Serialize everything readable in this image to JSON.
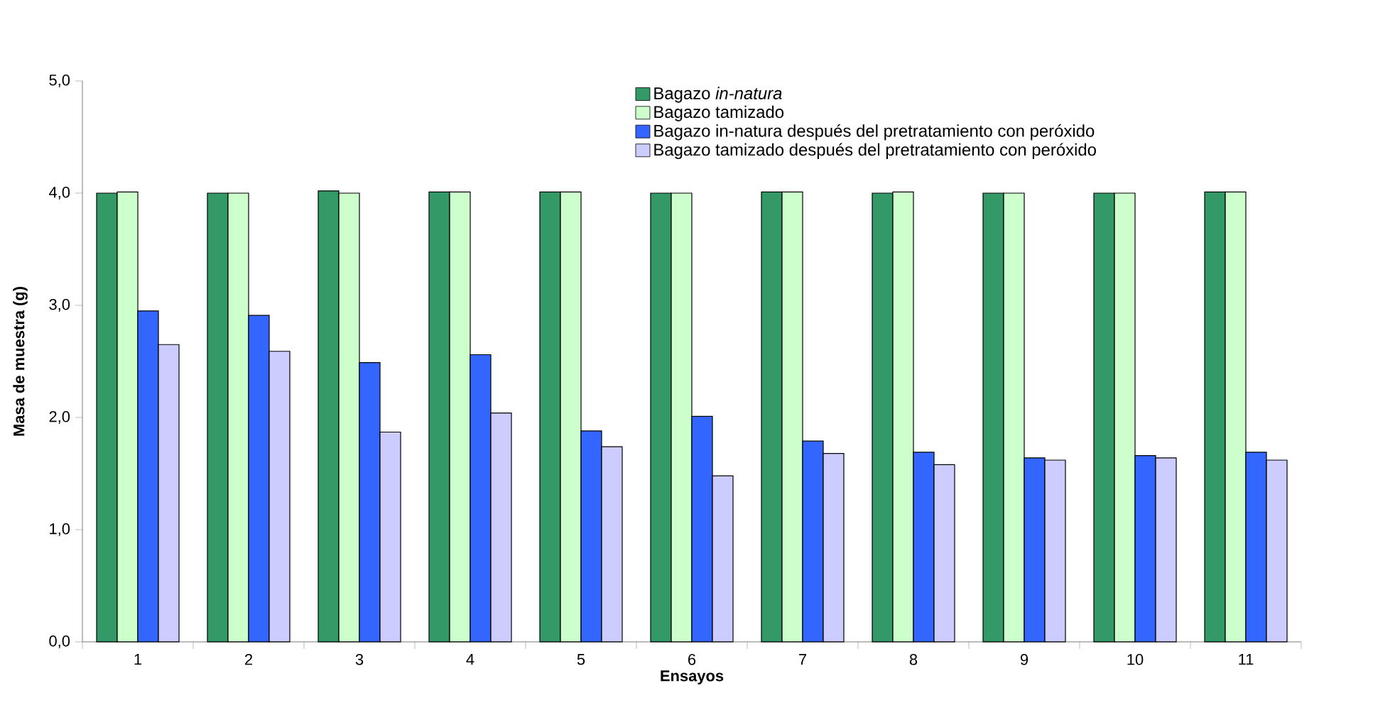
{
  "chart_data": {
    "type": "bar",
    "xlabel": "Ensayos",
    "ylabel": "Masa de muestra (g)",
    "categories": [
      "1",
      "2",
      "3",
      "4",
      "5",
      "6",
      "7",
      "8",
      "9",
      "10",
      "11"
    ],
    "series": [
      {
        "name": "Bagazo *in-natura*",
        "color": "#339966",
        "values": [
          4.0,
          4.0,
          4.02,
          4.01,
          4.01,
          4.0,
          4.01,
          4.0,
          4.0,
          4.0,
          4.01
        ]
      },
      {
        "name": "Bagazo tamizado",
        "color": "#ccffcc",
        "values": [
          4.01,
          4.0,
          4.0,
          4.01,
          4.01,
          4.0,
          4.01,
          4.01,
          4.0,
          4.0,
          4.01
        ]
      },
      {
        "name": "Bagazo in-natura después del  pretratamiento con peróxido",
        "color": "#3366ff",
        "values": [
          2.95,
          2.91,
          2.49,
          2.56,
          1.88,
          2.01,
          1.79,
          1.69,
          1.64,
          1.66,
          1.69
        ]
      },
      {
        "name": "Bagazo tamizado después del pretratamiento con peróxido",
        "color": "#ccccff",
        "values": [
          2.65,
          2.59,
          1.87,
          2.04,
          1.74,
          1.48,
          1.68,
          1.58,
          1.62,
          1.64,
          1.62
        ]
      }
    ],
    "ylim": [
      0,
      5
    ],
    "yticks": [
      {
        "value": 0,
        "label": "0,0"
      },
      {
        "value": 1,
        "label": "1,0"
      },
      {
        "value": 2,
        "label": "2,0"
      },
      {
        "value": 3,
        "label": "3,0"
      },
      {
        "value": 4,
        "label": "4,0"
      },
      {
        "value": 5,
        "label": "5,0"
      }
    ],
    "grid": false,
    "legend": "top"
  }
}
